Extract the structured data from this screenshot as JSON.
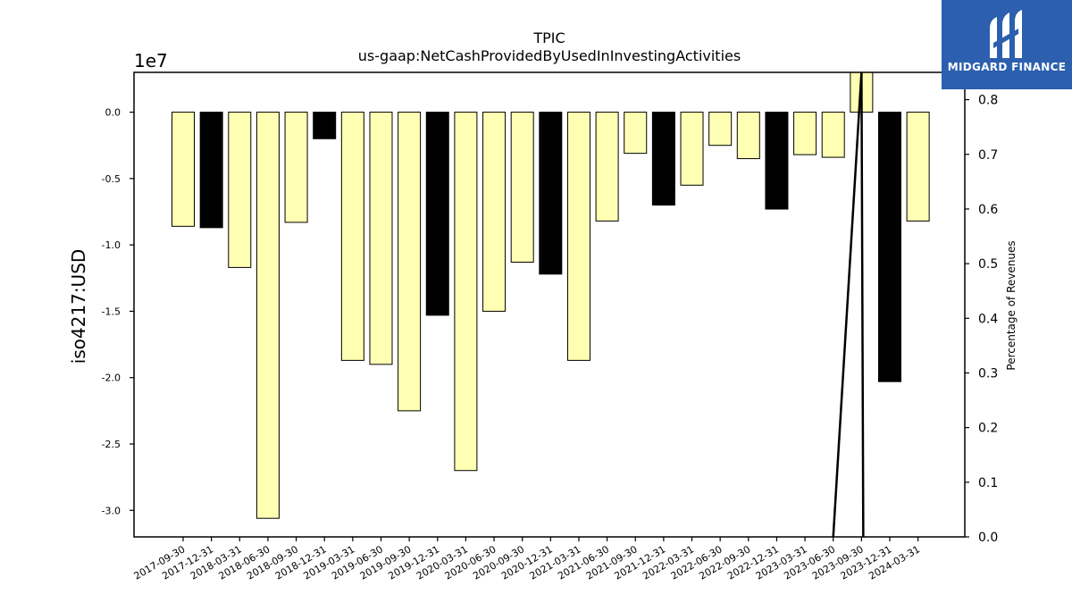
{
  "chart_data": {
    "type": "bar",
    "title": "TPIC",
    "subtitle": "us-gaap:NetCashProvidedByUsedInInvestingActivities",
    "ylabel": "iso4217:USD",
    "y2label": "Percentage of Revenues",
    "y_multiplier": "1e7",
    "ylim": [
      -3.2,
      0.3
    ],
    "y2lim": [
      0.0,
      0.85
    ],
    "yticks": [
      "0.0",
      "-0.5",
      "-1.0",
      "-1.5",
      "-2.0",
      "-2.5",
      "-3.0"
    ],
    "y2ticks": [
      "0.0",
      "0.1",
      "0.2",
      "0.3",
      "0.4",
      "0.5",
      "0.6",
      "0.7",
      "0.8"
    ],
    "categories": [
      "2017-09-30",
      "2017-12-31",
      "2018-03-31",
      "2018-06-30",
      "2018-09-30",
      "2018-12-31",
      "2019-03-31",
      "2019-06-30",
      "2019-09-30",
      "2019-12-31",
      "2020-03-31",
      "2020-06-30",
      "2020-09-30",
      "2020-12-31",
      "2021-03-31",
      "2021-06-30",
      "2021-09-30",
      "2021-12-31",
      "2022-03-31",
      "2022-06-30",
      "2022-09-30",
      "2022-12-31",
      "2023-03-31",
      "2023-06-30",
      "2023-09-30",
      "2023-12-31",
      "2024-03-31"
    ],
    "values": [
      -0.86,
      -0.87,
      -1.17,
      -3.06,
      -0.83,
      -0.2,
      -1.87,
      -1.9,
      -2.25,
      -1.53,
      -2.7,
      -1.5,
      -1.13,
      -1.22,
      -1.87,
      -0.82,
      -0.31,
      -0.7,
      -0.55,
      -0.25,
      -0.35,
      -0.73,
      -0.32,
      -0.34,
      0.3,
      -2.03,
      -0.82
    ],
    "bar_colors": [
      "#ffffb3",
      "#000000",
      "#ffffb3",
      "#ffffb3",
      "#ffffb3",
      "#000000",
      "#ffffb3",
      "#ffffb3",
      "#ffffb3",
      "#000000",
      "#ffffb3",
      "#ffffb3",
      "#ffffb3",
      "#000000",
      "#ffffb3",
      "#ffffb3",
      "#ffffb3",
      "#000000",
      "#ffffb3",
      "#ffffb3",
      "#ffffb3",
      "#000000",
      "#ffffb3",
      "#ffffb3",
      "#ffffb3",
      "#000000",
      "#ffffb3"
    ],
    "line_series": {
      "x": [
        "2023-06-30",
        "2023-09-30"
      ],
      "values": [
        0.0,
        0.85
      ]
    },
    "grid": false
  },
  "logo": {
    "text": "MIDGARD FINANCE"
  }
}
